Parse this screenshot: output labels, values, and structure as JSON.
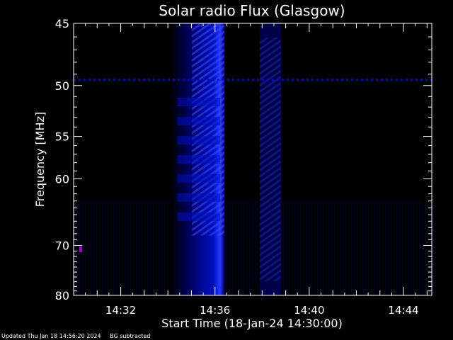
{
  "chart_data": {
    "type": "heatmap",
    "title": "Solar radio Flux (Glasgow)",
    "xlabel": "Start Time (18-Jan-24 14:30:00)",
    "ylabel": "Frequency [MHz]",
    "x_unit": "minutes after 14:30",
    "xlim": [
      0,
      15.2
    ],
    "x_ticks": [
      {
        "value": 2,
        "label": "14:32"
      },
      {
        "value": 6,
        "label": "14:36"
      },
      {
        "value": 10,
        "label": "14:40"
      },
      {
        "value": 14,
        "label": "14:44"
      }
    ],
    "ylim": [
      45,
      80
    ],
    "y_ticks": [
      {
        "value": 45,
        "label": "45"
      },
      {
        "value": 50,
        "label": "50"
      },
      {
        "value": 55,
        "label": "55"
      },
      {
        "value": 60,
        "label": "60"
      },
      {
        "value": 70,
        "label": "70"
      },
      {
        "value": 80,
        "label": "80"
      }
    ],
    "grid": false,
    "colormap": [
      "#000000",
      "#000060",
      "#0010c0",
      "#2838ff"
    ],
    "features": [
      {
        "kind": "broadband burst",
        "t_start": 4.1,
        "t_end": 6.4,
        "f_min": 45,
        "f_max": 80,
        "peak_time": 6.1
      },
      {
        "kind": "weak burst",
        "t_start": 7.9,
        "t_end": 8.8,
        "f_min": 45,
        "f_max": 80
      },
      {
        "kind": "narrowband interference",
        "frequency": 49.5
      },
      {
        "kind": "point source",
        "time": 0.3,
        "frequency": 70.7,
        "color": "#a000c8"
      }
    ]
  },
  "footer": {
    "updated": "Updated Thu Jan 18 14:56:20 2024",
    "mode": "BG subtracted"
  },
  "colors": {
    "background": "#000000",
    "text": "#ffffff",
    "axes": "#ffffff"
  }
}
